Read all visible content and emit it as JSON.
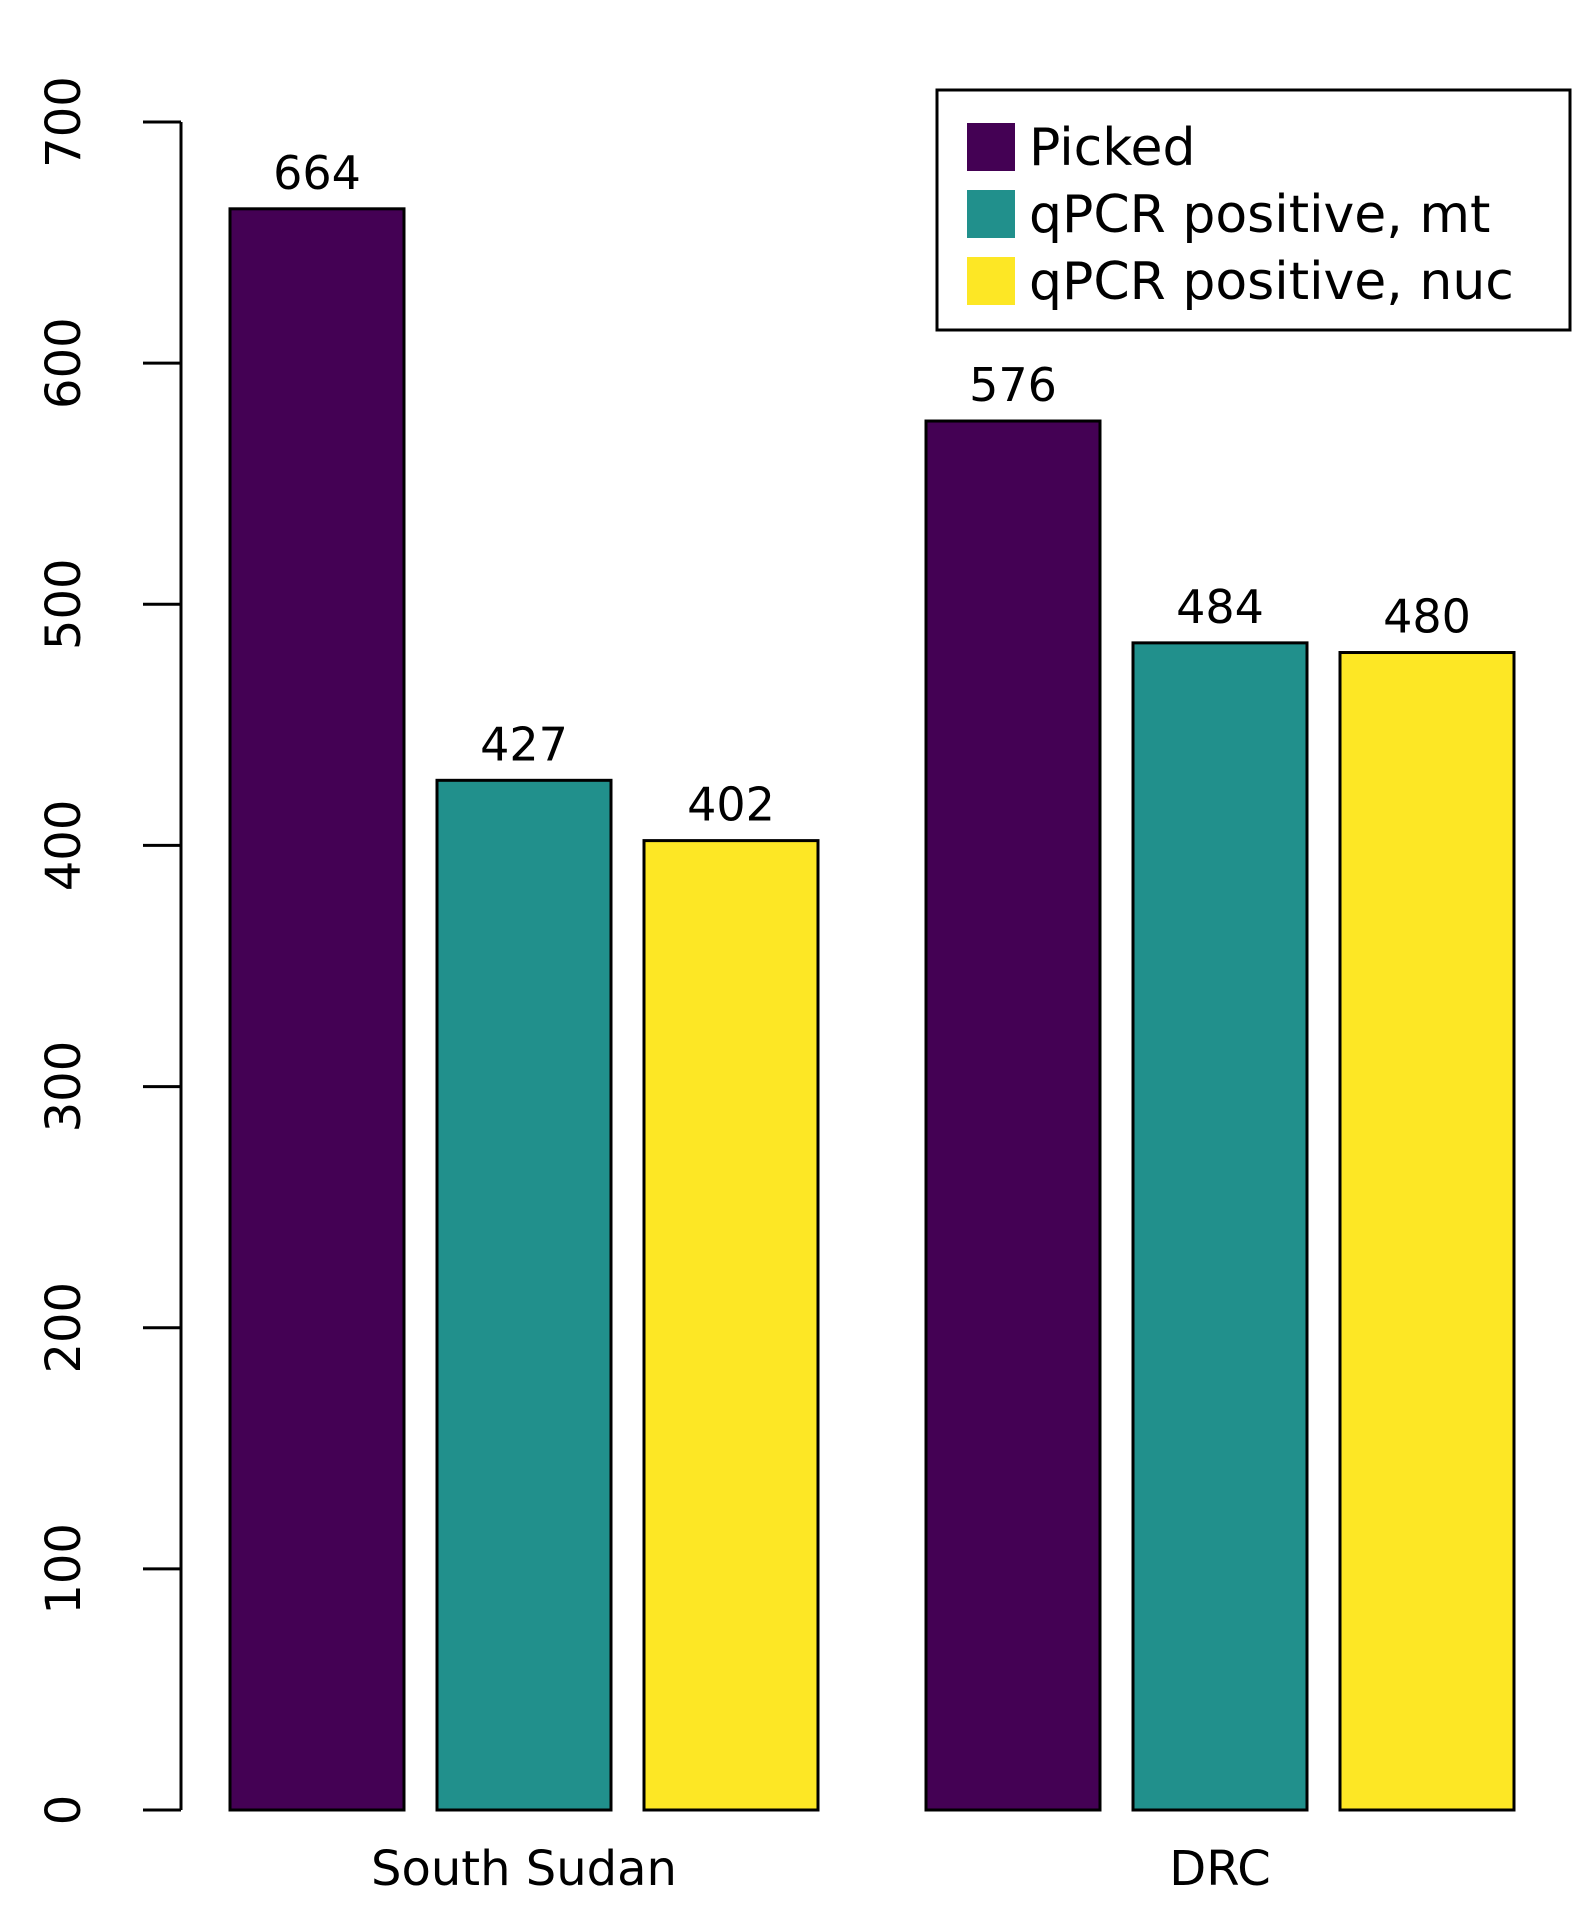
{
  "chart_data": {
    "type": "bar",
    "categories": [
      "South Sudan",
      "DRC"
    ],
    "series": [
      {
        "name": "Picked",
        "color": "#440154",
        "values": [
          664,
          576
        ]
      },
      {
        "name": "qPCR positive, mt",
        "color": "#21908C",
        "values": [
          427,
          484
        ]
      },
      {
        "name": "qPCR positive, nuc",
        "color": "#FDE725",
        "values": [
          402,
          480
        ]
      }
    ],
    "ylim": [
      0,
      700
    ],
    "yticks": [
      0,
      100,
      200,
      300,
      400,
      500,
      600,
      700
    ],
    "title": "",
    "xlabel": "",
    "ylabel": "",
    "legend": "top-right",
    "grid": false
  }
}
